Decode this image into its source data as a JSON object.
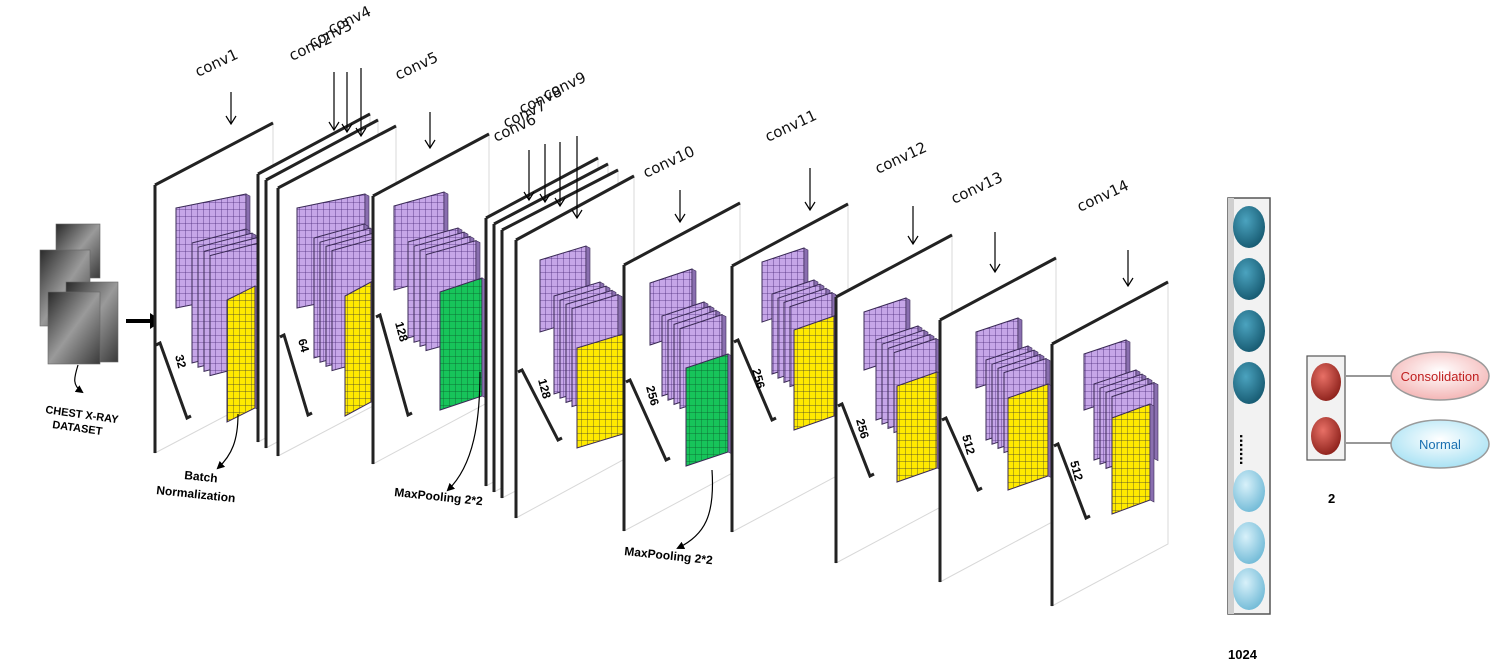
{
  "input": {
    "label_line1": "CHEST X-RAY",
    "label_line2": "DATASET"
  },
  "conv_labels": [
    "conv1",
    "conv2",
    "conv3",
    "conv4",
    "conv5",
    "conv6",
    "conv7",
    "conv8",
    "conv9",
    "conv10",
    "conv11",
    "conv12",
    "conv13",
    "conv14"
  ],
  "filter_counts": [
    "32",
    "64",
    "128",
    "128",
    "256",
    "256",
    "256",
    "512",
    "512"
  ],
  "annotations": {
    "batch_norm_line1": "Batch",
    "batch_norm_line2": "Normalization",
    "maxpool_1": "MaxPooling 2*2",
    "maxpool_2": "MaxPooling 2*2"
  },
  "dense": {
    "units": "1024",
    "ellipsis": "......."
  },
  "output": {
    "units": "2",
    "classes": [
      "Consolidation",
      "Normal"
    ]
  },
  "colors": {
    "filter_purple": "#c6a6e8",
    "batchnorm_yellow": "#ffea00",
    "maxpool_green": "#17c45a",
    "dense_node_dark": "#1d6b86",
    "dense_node_light": "#9fd6ea",
    "output_node": "#b0322b",
    "consolidation_text": "#c02020",
    "normal_text": "#1a6fb0"
  }
}
